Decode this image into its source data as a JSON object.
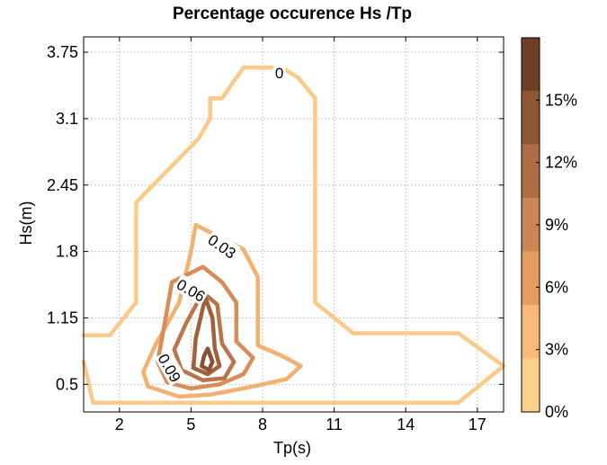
{
  "chart_data": {
    "type": "contour",
    "title": "Percentage occurence Hs /Tp",
    "xlabel": "Tp(s)",
    "ylabel": "Hs(m)",
    "xlim": [
      0.5,
      18.1
    ],
    "ylim": [
      0.23,
      3.9
    ],
    "x_ticks": [
      2,
      5,
      8,
      11,
      14,
      17
    ],
    "y_ticks": [
      0.5,
      1.15,
      1.8,
      2.45,
      3.1,
      3.75
    ],
    "grid": true,
    "colorbar": {
      "min": 0,
      "max": 18,
      "tick_values": [
        0,
        3,
        6,
        9,
        12,
        15
      ],
      "tick_labels": [
        "0%",
        "3%",
        "6%",
        "9%",
        "12%",
        "15%"
      ],
      "band_colors": [
        "#fcd08c",
        "#fab978",
        "#e89a63",
        "#cb8452",
        "#ae6d43",
        "#8f5634",
        "#6e4025"
      ]
    },
    "contours": [
      {
        "level_label": "0",
        "color": "#fcc988",
        "points": [
          [
            0.5,
            0.98
          ],
          [
            1.6,
            0.98
          ],
          [
            2.7,
            1.3
          ],
          [
            2.7,
            2.28
          ],
          [
            5.3,
            2.9
          ],
          [
            5.8,
            3.1
          ],
          [
            5.8,
            3.3
          ],
          [
            6.3,
            3.3
          ],
          [
            7.2,
            3.6
          ],
          [
            8.8,
            3.6
          ],
          [
            9.5,
            3.5
          ],
          [
            10.2,
            3.3
          ],
          [
            10.2,
            1.3
          ],
          [
            11.8,
            1.0
          ],
          [
            16.2,
            1.0
          ],
          [
            18.1,
            0.68
          ],
          [
            16.2,
            0.32
          ],
          [
            11.8,
            0.32
          ],
          [
            5.0,
            0.32
          ],
          [
            3.0,
            0.32
          ],
          [
            0.9,
            0.32
          ],
          [
            0.5,
            0.72
          ]
        ]
      },
      {
        "level_label": "0.03",
        "color": "#f4b06e",
        "points": [
          [
            5.2,
            2.06
          ],
          [
            7.2,
            1.82
          ],
          [
            7.8,
            1.55
          ],
          [
            7.8,
            0.88
          ],
          [
            8.8,
            0.78
          ],
          [
            9.6,
            0.68
          ],
          [
            9.0,
            0.55
          ],
          [
            7.2,
            0.46
          ],
          [
            5.8,
            0.4
          ],
          [
            4.5,
            0.38
          ],
          [
            3.2,
            0.48
          ],
          [
            3.0,
            0.62
          ],
          [
            3.5,
            0.88
          ],
          [
            4.5,
            1.3
          ],
          [
            5.0,
            1.8
          ],
          [
            5.2,
            2.06
          ]
        ]
      },
      {
        "level_label": "0.06",
        "color": "#d88c58",
        "points": [
          [
            4.2,
            1.5
          ],
          [
            5.5,
            1.65
          ],
          [
            6.3,
            1.5
          ],
          [
            6.9,
            1.3
          ],
          [
            6.9,
            0.92
          ],
          [
            7.6,
            0.76
          ],
          [
            7.2,
            0.6
          ],
          [
            6.2,
            0.5
          ],
          [
            5.0,
            0.46
          ],
          [
            4.0,
            0.52
          ],
          [
            3.6,
            0.72
          ],
          [
            3.9,
            1.1
          ],
          [
            4.2,
            1.5
          ]
        ]
      },
      {
        "level_label": "0.09",
        "color": "#b9744a",
        "points": [
          [
            5.5,
            1.4
          ],
          [
            6.1,
            1.28
          ],
          [
            6.3,
            0.9
          ],
          [
            6.8,
            0.72
          ],
          [
            6.4,
            0.56
          ],
          [
            5.5,
            0.54
          ],
          [
            4.6,
            0.64
          ],
          [
            4.3,
            0.84
          ],
          [
            4.8,
            1.1
          ],
          [
            5.5,
            1.4
          ]
        ]
      },
      {
        "level_label": "",
        "color": "#a0603c",
        "points": [
          [
            5.6,
            1.35
          ],
          [
            5.9,
            1.15
          ],
          [
            6.0,
            0.85
          ],
          [
            6.2,
            0.68
          ],
          [
            5.7,
            0.6
          ],
          [
            5.1,
            0.66
          ],
          [
            5.2,
            0.95
          ],
          [
            5.6,
            1.35
          ]
        ]
      },
      {
        "level_label": "",
        "color": "#8a5032",
        "points": [
          [
            5.7,
            0.85
          ],
          [
            5.9,
            0.72
          ],
          [
            5.75,
            0.64
          ],
          [
            5.45,
            0.68
          ],
          [
            5.55,
            0.78
          ],
          [
            5.7,
            0.85
          ]
        ]
      }
    ],
    "contour_labels": [
      {
        "text": "0",
        "x": 8.7,
        "y": 3.55,
        "angle": 0
      },
      {
        "text": "0.03",
        "x": 6.3,
        "y": 1.85,
        "angle": 35
      },
      {
        "text": "0.06",
        "x": 5.0,
        "y": 1.42,
        "angle": 30
      },
      {
        "text": "0.09",
        "x": 4.1,
        "y": 0.66,
        "angle": 60
      }
    ]
  }
}
